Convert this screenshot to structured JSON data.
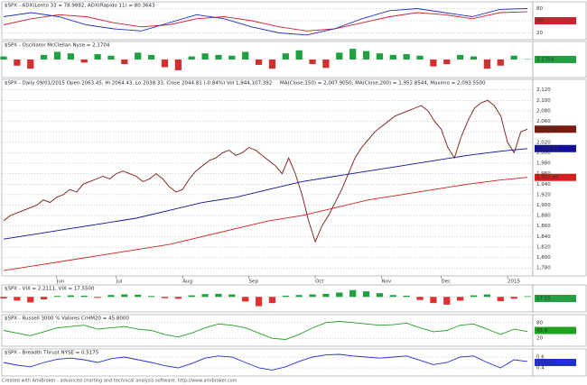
{
  "chart_data": [
    {
      "type": "line",
      "title": "$SPX - ADX(Lento 33 = 78.9882, ADX(Rapido 11) = 80.3643",
      "xlim": [
        0,
        19
      ],
      "ylim": [
        10,
        90
      ],
      "yticks": [
        20,
        50,
        80
      ],
      "badge": "80",
      "series": [
        {
          "color": "#d02030",
          "values": [
            40,
            55,
            65,
            60,
            45,
            35,
            40,
            55,
            60,
            50,
            35,
            25,
            30,
            45,
            60,
            70,
            65,
            55,
            70,
            72
          ]
        },
        {
          "color": "#2030c0",
          "values": [
            60,
            70,
            60,
            40,
            30,
            25,
            45,
            65,
            55,
            35,
            20,
            15,
            30,
            55,
            75,
            80,
            70,
            60,
            78,
            80
          ]
        }
      ]
    },
    {
      "type": "bar",
      "title": "$SPX - Oscillator McClellan Nyse = 2.1704",
      "xlim": [
        0,
        39
      ],
      "ylim": [
        -100,
        100
      ],
      "yticks": [
        0
      ],
      "badge": "2.1704",
      "series": [
        {
          "color": "#20a040",
          "negcolor": "#d03030",
          "values": [
            20,
            -40,
            -60,
            30,
            50,
            40,
            -20,
            35,
            25,
            -30,
            45,
            30,
            -50,
            -70,
            20,
            40,
            30,
            25,
            50,
            -35,
            -60,
            40,
            60,
            -30,
            -55,
            45,
            70,
            55,
            40,
            30,
            35,
            25,
            -45,
            -30,
            30,
            20,
            -60,
            -40,
            25,
            2.17
          ]
        }
      ]
    },
    {
      "type": "line",
      "title": "$SPX - Daily 09/01/2015 Open 2063.45, Hi 2064.43, Lo 2038.33, Close 2044.81 (-0.84%) Vol 1,944,107,392",
      "subtitle": "MA(Close,150) = 2,007.9050, MA(Close,200) = 1,952.8544, Maximo = 2,093.5500",
      "xlim": [
        0,
        79
      ],
      "ylim": [
        1770,
        2135
      ],
      "yticks": [
        {
          "value": 2120,
          "label": "2,120"
        },
        {
          "value": 2100,
          "label": "2,100"
        },
        {
          "value": 2080,
          "label": "2,080"
        },
        {
          "value": 2060,
          "label": "2,060"
        },
        {
          "value": 2040,
          "label": "2,040"
        },
        {
          "value": 2020,
          "label": "2,020"
        },
        {
          "value": 2000,
          "label": "2,000"
        },
        {
          "value": 1980,
          "label": "1,980"
        },
        {
          "value": 1960,
          "label": "1,960"
        },
        {
          "value": 1940,
          "label": "1,940"
        },
        {
          "value": 1920,
          "label": "1,920"
        },
        {
          "value": 1900,
          "label": "1,900"
        },
        {
          "value": 1880,
          "label": "1,880"
        },
        {
          "value": 1860,
          "label": "1,860"
        },
        {
          "value": 1840,
          "label": "1,840"
        },
        {
          "value": 1820,
          "label": "1,820"
        },
        {
          "value": 1800,
          "label": "1,800"
        },
        {
          "value": 1780,
          "label": "1,780"
        }
      ],
      "xticks": [
        {
          "value": 8,
          "label": "Jun"
        },
        {
          "value": 17,
          "label": "Jul"
        },
        {
          "value": 27,
          "label": "Aug"
        },
        {
          "value": 37,
          "label": "Sep"
        },
        {
          "value": 47,
          "label": "Oct"
        },
        {
          "value": 57,
          "label": "Nov"
        },
        {
          "value": 66,
          "label": "Dec"
        },
        {
          "value": 76,
          "label": "2015"
        }
      ],
      "series": [
        {
          "color": "#7a1a10",
          "badge": "2,044.81",
          "values": [
            1870,
            1880,
            1885,
            1890,
            1895,
            1900,
            1910,
            1905,
            1915,
            1920,
            1930,
            1925,
            1940,
            1945,
            1950,
            1955,
            1950,
            1960,
            1965,
            1960,
            1955,
            1945,
            1950,
            1960,
            1950,
            1935,
            1925,
            1930,
            1950,
            1965,
            1975,
            1985,
            1990,
            2000,
            2005,
            1995,
            2000,
            2010,
            2005,
            1995,
            1985,
            1975,
            1960,
            1990,
            1960,
            1920,
            1870,
            1830,
            1860,
            1880,
            1905,
            1930,
            1960,
            1990,
            2010,
            2025,
            2040,
            2050,
            2060,
            2070,
            2075,
            2080,
            2085,
            2090,
            2080,
            2060,
            2045,
            2010,
            1990,
            2030,
            2060,
            2085,
            2095,
            2100,
            2090,
            2070,
            2020,
            2000,
            2040,
            2045
          ]
        },
        {
          "color": "#10109a",
          "badge": "2,007.91",
          "x": [
            0,
            5,
            10,
            15,
            20,
            25,
            30,
            35,
            40,
            45,
            50,
            55,
            60,
            65,
            70,
            75,
            79
          ],
          "values": [
            1835,
            1845,
            1855,
            1865,
            1875,
            1890,
            1905,
            1915,
            1930,
            1945,
            1955,
            1965,
            1975,
            1985,
            1995,
            2003,
            2008
          ]
        },
        {
          "color": "#d02020",
          "badge": "1,952.85",
          "x": [
            0,
            5,
            10,
            15,
            20,
            25,
            30,
            35,
            40,
            45,
            50,
            55,
            60,
            65,
            70,
            75,
            79
          ],
          "values": [
            1775,
            1785,
            1795,
            1805,
            1815,
            1825,
            1840,
            1855,
            1870,
            1880,
            1895,
            1910,
            1920,
            1930,
            1940,
            1948,
            1953
          ]
        }
      ]
    },
    {
      "type": "bar",
      "title": "$SPX - VIX = 2.2111, VIX = 17.5500",
      "xlim": [
        0,
        39
      ],
      "ylim": [
        -40,
        30
      ],
      "yticks": [
        0
      ],
      "badge": "17.55",
      "series": [
        {
          "color": "#20a040",
          "negcolor": "#e03030",
          "values": [
            -5,
            -12,
            -18,
            -8,
            3,
            5,
            4,
            -3,
            6,
            8,
            7,
            3,
            -4,
            -6,
            5,
            9,
            10,
            8,
            -15,
            -30,
            -20,
            4,
            6,
            8,
            10,
            14,
            22,
            18,
            12,
            6,
            4,
            -10,
            -20,
            -25,
            -12,
            5,
            8,
            -14,
            -6,
            2.2
          ]
        }
      ]
    },
    {
      "type": "line",
      "title": "$SPX - Russell 3000 % Valores CrHM20 = 45.8000",
      "xlim": [
        0,
        39
      ],
      "ylim": [
        0,
        100
      ],
      "yticks": [
        20,
        80
      ],
      "badge": "45.8",
      "series": [
        {
          "color": "#20a020",
          "values": [
            50,
            40,
            30,
            45,
            60,
            65,
            70,
            55,
            60,
            65,
            55,
            50,
            35,
            25,
            40,
            60,
            75,
            70,
            60,
            40,
            20,
            15,
            35,
            60,
            80,
            85,
            80,
            75,
            70,
            72,
            78,
            60,
            45,
            50,
            70,
            75,
            55,
            35,
            55,
            45.8
          ]
        }
      ]
    },
    {
      "type": "line",
      "title": "$SPX - Breadth Thrust NYSE = 0.5175",
      "xlim": [
        0,
        39
      ],
      "ylim": [
        0.3,
        0.7
      ],
      "yticks": [
        0.4,
        0.6
      ],
      "badge": "0.5175",
      "series": [
        {
          "color": "#2030d0",
          "values": [
            0.5,
            0.45,
            0.42,
            0.5,
            0.56,
            0.58,
            0.55,
            0.5,
            0.57,
            0.6,
            0.55,
            0.5,
            0.44,
            0.4,
            0.48,
            0.58,
            0.62,
            0.6,
            0.5,
            0.4,
            0.36,
            0.42,
            0.52,
            0.6,
            0.64,
            0.65,
            0.62,
            0.6,
            0.58,
            0.6,
            0.62,
            0.54,
            0.46,
            0.5,
            0.6,
            0.62,
            0.5,
            0.4,
            0.55,
            0.5175
          ]
        }
      ]
    }
  ],
  "footer": "Created with AmiBroker - advanced charting and technical analysis software. http://www.amibroker.com"
}
